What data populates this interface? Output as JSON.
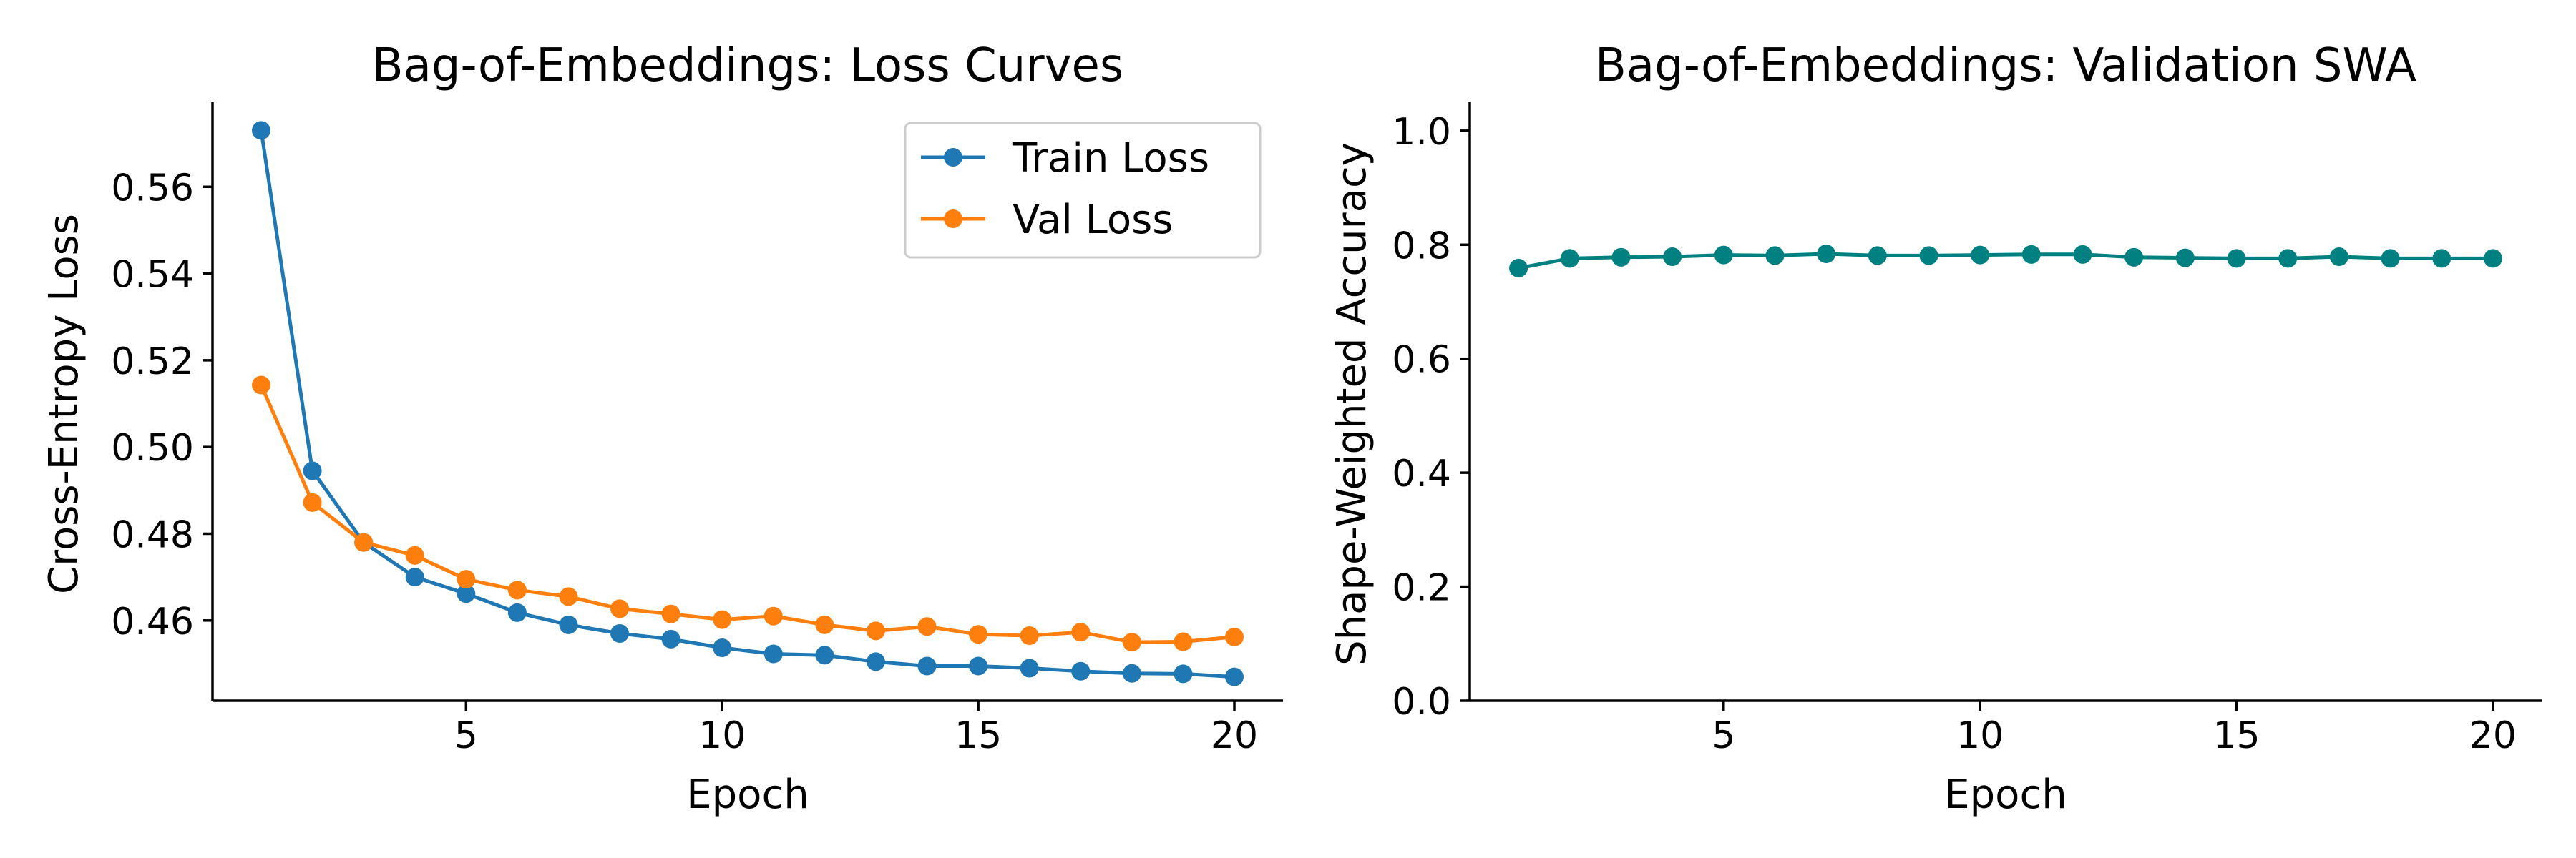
{
  "chart_data": [
    {
      "type": "line",
      "title": "Bag-of-Embeddings: Loss Curves",
      "xlabel": "Epoch",
      "ylabel": "Cross-Entropy Loss",
      "xlim": [
        0.05,
        20.95
      ],
      "ylim": [
        0.4415,
        0.5795
      ],
      "xticks": [
        5,
        10,
        15,
        20
      ],
      "xtick_labels": [
        "5",
        "10",
        "15",
        "20"
      ],
      "yticks": [
        0.46,
        0.48,
        0.5,
        0.52,
        0.54,
        0.56
      ],
      "ytick_labels": [
        "0.46",
        "0.48",
        "0.50",
        "0.52",
        "0.54",
        "0.56"
      ],
      "grid": false,
      "legend": {
        "placement": "upper right"
      },
      "x": [
        1,
        2,
        3,
        4,
        5,
        6,
        7,
        8,
        9,
        10,
        11,
        12,
        13,
        14,
        15,
        16,
        17,
        18,
        19,
        20
      ],
      "series": [
        {
          "name": "Train Loss",
          "color": "#1f77b4",
          "values": [
            0.573,
            0.4945,
            0.478,
            0.47,
            0.4662,
            0.4618,
            0.459,
            0.457,
            0.4557,
            0.4537,
            0.4523,
            0.452,
            0.4505,
            0.4495,
            0.4495,
            0.449,
            0.4483,
            0.4478,
            0.4477,
            0.447
          ]
        },
        {
          "name": "Val Loss",
          "color": "#ff7f0e",
          "values": [
            0.5143,
            0.4872,
            0.478,
            0.475,
            0.4695,
            0.467,
            0.4655,
            0.4627,
            0.4615,
            0.4602,
            0.461,
            0.459,
            0.4576,
            0.4586,
            0.4568,
            0.4565,
            0.4573,
            0.455,
            0.4551,
            0.4562
          ]
        }
      ]
    },
    {
      "type": "line",
      "title": "Bag-of-Embeddings: Validation SWA",
      "xlabel": "Epoch",
      "ylabel": "Shape-Weighted Accuracy",
      "xlim": [
        0.05,
        20.95
      ],
      "ylim": [
        0.0,
        1.05
      ],
      "xticks": [
        5,
        10,
        15,
        20
      ],
      "xtick_labels": [
        "5",
        "10",
        "15",
        "20"
      ],
      "yticks": [
        0.0,
        0.2,
        0.4,
        0.6,
        0.8,
        1.0
      ],
      "ytick_labels": [
        "0.0",
        "0.2",
        "0.4",
        "0.6",
        "0.8",
        "1.0"
      ],
      "grid": false,
      "x": [
        1,
        2,
        3,
        4,
        5,
        6,
        7,
        8,
        9,
        10,
        11,
        12,
        13,
        14,
        15,
        16,
        17,
        18,
        19,
        20
      ],
      "series": [
        {
          "color": "#008080",
          "values": [
            0.759,
            0.776,
            0.778,
            0.779,
            0.782,
            0.781,
            0.784,
            0.781,
            0.781,
            0.782,
            0.783,
            0.783,
            0.778,
            0.777,
            0.776,
            0.776,
            0.779,
            0.776,
            0.776,
            0.776
          ]
        }
      ]
    }
  ]
}
